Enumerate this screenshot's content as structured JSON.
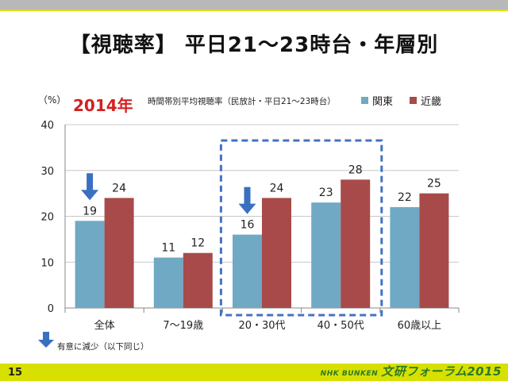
{
  "slide": {
    "title": "【視聴率】 平日21～23時台・年層別",
    "page_number": "15",
    "footer_logo": "文研フォーラム2015",
    "footer_logo_small": "NHK BUNKEN"
  },
  "colors": {
    "kanto": "#70a9c4",
    "kinki": "#a84a4a",
    "arrow": "#3a70c0",
    "highlight_box": "#4472c4",
    "top_bar": "#b8b8b8",
    "accent": "#d8e000"
  },
  "chart_data": {
    "type": "bar",
    "year_label": "2014年",
    "title": "時間帯別平均視聴率（民放計・平日21～23時台）",
    "ylabel": "（%）",
    "ylim": [
      0,
      40
    ],
    "yticks": [
      0,
      10,
      20,
      30,
      40
    ],
    "grid": true,
    "legend_position": "top-right",
    "categories": [
      "全体",
      "7～19歳",
      "20・30代",
      "40・50代",
      "60歳以上"
    ],
    "series": [
      {
        "name": "関東",
        "values": [
          19,
          11,
          16,
          23,
          22
        ]
      },
      {
        "name": "近畿",
        "values": [
          24,
          12,
          24,
          28,
          25
        ]
      }
    ],
    "significant_decrease_markers": [
      "全体",
      "20・30代"
    ],
    "highlighted_categories": [
      "20・30代",
      "40・50代"
    ],
    "note": "有意に減少（以下同じ）"
  }
}
